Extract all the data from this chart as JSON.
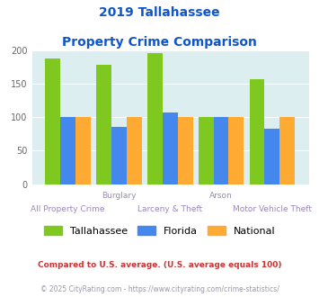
{
  "title_line1": "2019 Tallahassee",
  "title_line2": "Property Crime Comparison",
  "groups": [
    "All Property Crime",
    "Burglary",
    "Larceny & Theft",
    "Arson",
    "Motor Vehicle Theft"
  ],
  "tallahassee": [
    188,
    179,
    196,
    100,
    157
  ],
  "florida": [
    101,
    86,
    107,
    100,
    83
  ],
  "national": [
    100,
    100,
    100,
    100,
    100
  ],
  "color_tallahassee": "#7ec820",
  "color_florida": "#4488ee",
  "color_national": "#ffaa33",
  "background_color": "#ddeef0",
  "legend_labels": [
    "Tallahassee",
    "Florida",
    "National"
  ],
  "footnote1": "Compared to U.S. average. (U.S. average equals 100)",
  "footnote2": "© 2025 CityRating.com - https://www.cityrating.com/crime-statistics/",
  "title_color": "#1155cc",
  "axis_label_color": "#9988bb",
  "footnote1_color": "#cc3333",
  "footnote2_color": "#9999aa",
  "ylim": [
    0,
    200
  ],
  "yticks": [
    0,
    50,
    100,
    150,
    200
  ],
  "top_row_labels": [
    [
      1,
      "Burglary"
    ],
    [
      3,
      "Arson"
    ]
  ],
  "bottom_row_labels": [
    [
      0,
      "All Property Crime"
    ],
    [
      2,
      "Larceny & Theft"
    ],
    [
      4,
      "Motor Vehicle Theft"
    ]
  ]
}
